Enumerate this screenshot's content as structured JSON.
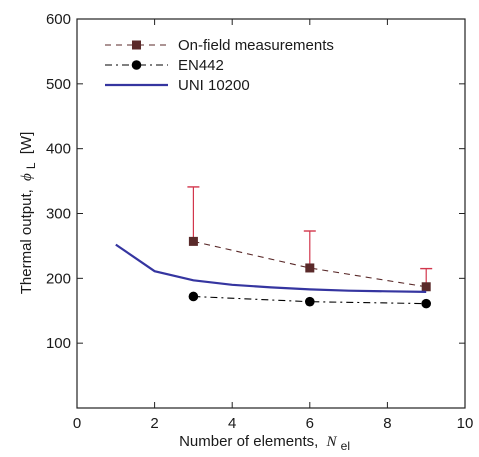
{
  "chart_data": {
    "type": "line",
    "xlabel": "Number of elements,",
    "xlabel_var": "N",
    "xlabel_sub": "el",
    "ylabel": "Thermal output,",
    "ylabel_var": "ϕ",
    "ylabel_sub": "L",
    "ylabel_unit": "[W]",
    "xlim": [
      0,
      10
    ],
    "ylim": [
      0,
      600
    ],
    "xticks": [
      0,
      2,
      4,
      6,
      8,
      10
    ],
    "yticks": [
      100,
      200,
      300,
      400,
      500,
      600
    ],
    "grid": false,
    "legend_position": "top-left",
    "series": [
      {
        "name": "On-field measurements",
        "color": "#5a2a2a",
        "error_color": "#d2364c",
        "line_style": "dashed",
        "marker": "square",
        "x": [
          3,
          6,
          9
        ],
        "y": [
          257,
          216,
          187
        ],
        "error_high": [
          341,
          273,
          215
        ]
      },
      {
        "name": "EN442",
        "color": "#000000",
        "line_style": "dashdot",
        "marker": "circle",
        "x": [
          3,
          6,
          9
        ],
        "y": [
          172,
          164,
          161
        ]
      },
      {
        "name": "UNI 10200",
        "color": "#3535a0",
        "line_style": "solid",
        "marker": "none",
        "x": [
          1,
          2,
          3,
          4,
          5,
          6,
          7,
          8,
          9
        ],
        "y": [
          252,
          211,
          197,
          190,
          186,
          183,
          181,
          180,
          179
        ]
      }
    ]
  }
}
